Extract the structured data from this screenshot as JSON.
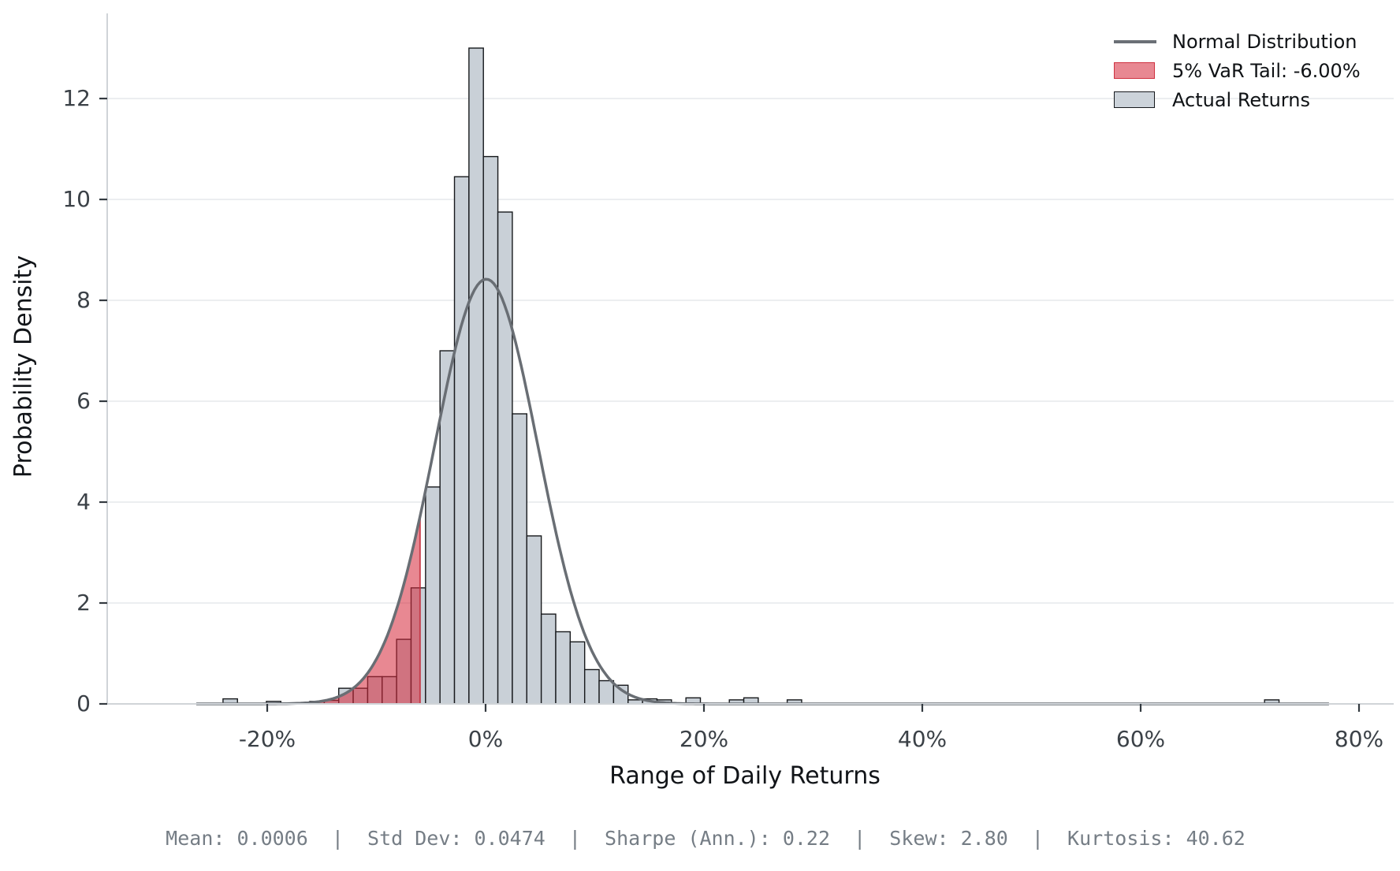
{
  "figure": {
    "xlabel": "Range of Daily Returns",
    "ylabel": "Probability Density",
    "footer_stats": "Mean: 0.0006  |  Std Dev: 0.0474  |  Sharpe (Ann.): 0.22  |  Skew: 2.80  |  Kurtosis: 40.62"
  },
  "legend": {
    "position": "upper right",
    "items": [
      {
        "type": "line",
        "label": "Normal Distribution",
        "color": "#6b7076"
      },
      {
        "type": "patch",
        "label": "5% VaR Tail: -6.00%",
        "fill": "rgba(214,39,57,0.55)",
        "edge": "#cf3140"
      },
      {
        "type": "patch",
        "label": "Actual Returns",
        "fill": "#ccd3da",
        "edge": "#16191d"
      }
    ]
  },
  "chart_data": {
    "type": "bar",
    "subtype": "histogram-with-normal-overlay",
    "title": "",
    "xlabel": "Range of Daily Returns",
    "ylabel": "Probability Density",
    "x_unit": "daily return (%)",
    "bin_width_pct": 1.325,
    "bars_format": "[left_edge_pct, density_height]",
    "bars": [
      [
        -24.05,
        0.1
      ],
      [
        -20.075,
        0.05
      ],
      [
        -16.1,
        0.05
      ],
      [
        -14.775,
        0.07
      ],
      [
        -13.45,
        0.31
      ],
      [
        -12.125,
        0.31
      ],
      [
        -10.8,
        0.54
      ],
      [
        -9.475,
        0.54
      ],
      [
        -8.15,
        1.28
      ],
      [
        -6.825,
        2.3
      ],
      [
        -5.5,
        4.3
      ],
      [
        -4.175,
        7.0
      ],
      [
        -2.85,
        10.45
      ],
      [
        -1.525,
        13.0
      ],
      [
        -0.2,
        10.85
      ],
      [
        1.125,
        9.75
      ],
      [
        2.45,
        5.75
      ],
      [
        3.775,
        3.33
      ],
      [
        5.1,
        1.78
      ],
      [
        6.425,
        1.43
      ],
      [
        7.75,
        1.23
      ],
      [
        9.075,
        0.68
      ],
      [
        10.4,
        0.46
      ],
      [
        11.725,
        0.37
      ],
      [
        13.05,
        0.08
      ],
      [
        14.375,
        0.1
      ],
      [
        15.7,
        0.08
      ],
      [
        18.35,
        0.12
      ],
      [
        22.325,
        0.08
      ],
      [
        23.65,
        0.12
      ],
      [
        27.625,
        0.08
      ],
      [
        71.35,
        0.08
      ]
    ],
    "normal_curve": {
      "mean": 0.0006,
      "std_dev": 0.0474,
      "peak_density": 8.42,
      "x_range_pct": [
        -26.5,
        77.3
      ],
      "color": "#696e74"
    },
    "var_tail": {
      "threshold_pct": -6.0,
      "confidence": "5%",
      "label": "5% VaR Tail: -6.00%",
      "fill": "rgba(214,39,57,0.55)",
      "edge": "#c32b3a"
    },
    "x_ticks": [
      {
        "value": -20,
        "label": "-20%"
      },
      {
        "value": 0,
        "label": "0%"
      },
      {
        "value": 20,
        "label": "20%"
      },
      {
        "value": 40,
        "label": "40%"
      },
      {
        "value": 60,
        "label": "60%"
      },
      {
        "value": 80,
        "label": "80%"
      }
    ],
    "y_ticks": [
      0,
      2,
      4,
      6,
      8,
      10,
      12
    ],
    "xlim_pct": [
      -34.7,
      83.2
    ],
    "ylim": [
      0,
      13.7
    ],
    "grid": "horizontal-only",
    "legend_position": "upper right",
    "colors": {
      "bar_fill": "#c9d0d7",
      "bar_edge": "#17191c",
      "gridline": "#e9ebee",
      "spine": "#d0d4d8",
      "tick_mark": "#333a40",
      "tick_text": "#3b4147"
    },
    "stats": {
      "mean": "0.0006",
      "std_dev": "0.0474",
      "sharpe_ann": "0.22",
      "skew": "2.80",
      "kurtosis": "40.62"
    }
  }
}
